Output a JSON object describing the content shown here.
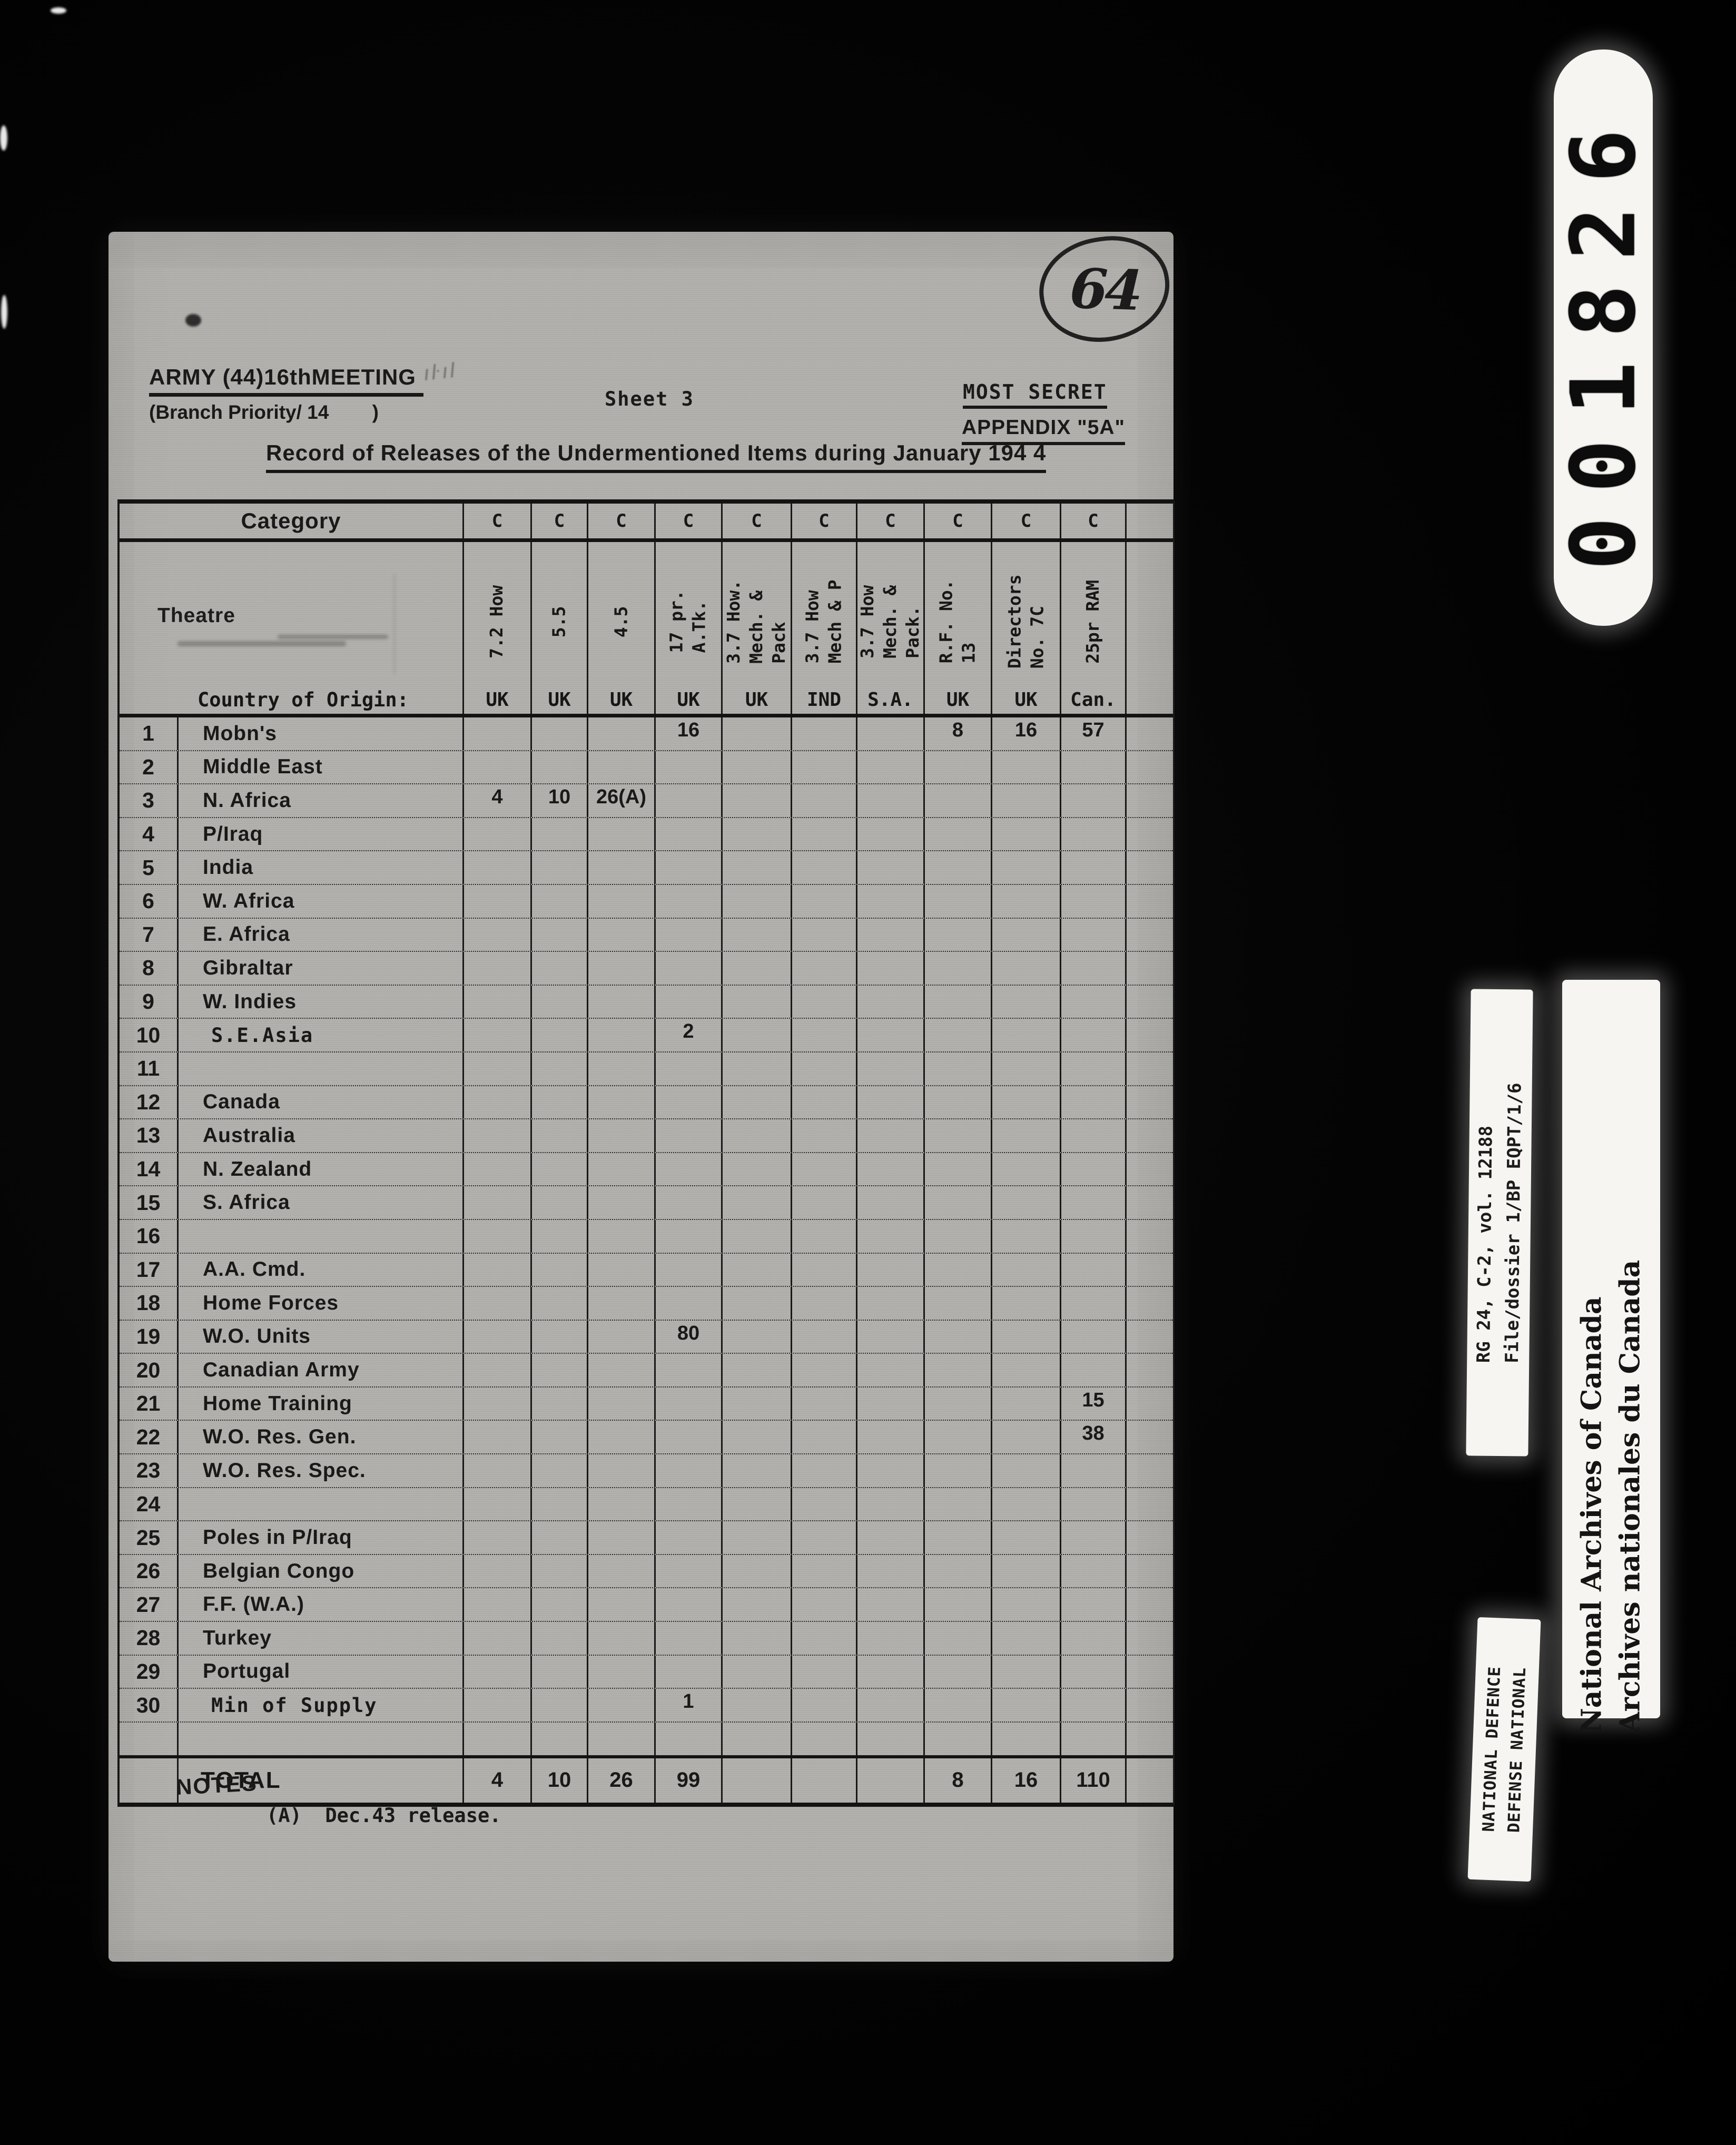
{
  "film": {
    "frame_counter": "001826",
    "rg_label": {
      "line1": "RG 24, C-2, vol. 12188",
      "line2": "File/dossier 1/BP EQPT/1/6"
    },
    "archives_label": {
      "line1": "National Archives of Canada",
      "line2": "Archives nationales du Canada"
    },
    "defence_label": {
      "line1": "NATIONAL DEFENCE",
      "line2": "DEFENSE NATIONAL"
    }
  },
  "document": {
    "handwritten_page_number": "64",
    "header": {
      "meeting": "ARMY (44)16thMEETING",
      "branch_priority": "(Branch Priority/ 14        )",
      "sheet": "Sheet 3",
      "classification": "MOST SECRET",
      "appendix": "APPENDIX \"5A\"",
      "title": "Record of Releases of the Undermentioned Items during January 194 4"
    },
    "table": {
      "corner_label": "Category",
      "category_code": "C",
      "theatre_label": "Theatre",
      "origin_label": "Country of Origin:",
      "columns": [
        {
          "item": "7.2 How",
          "origin": "UK"
        },
        {
          "item": "5.5",
          "origin": "UK"
        },
        {
          "item": "4.5",
          "origin": "UK"
        },
        {
          "item": "17 pr.\nA.Tk.",
          "origin": "UK"
        },
        {
          "item": "3.7 How.\nMech. &\nPack",
          "origin": "UK"
        },
        {
          "item": "3.7 How\nMech & P",
          "origin": "IND"
        },
        {
          "item": "3.7 How\nMech. &\nPack.",
          "origin": "S.A."
        },
        {
          "item": "R.F. No.\n13",
          "origin": "UK"
        },
        {
          "item": "Directors\nNo. 7C",
          "origin": "UK"
        },
        {
          "item": "25pr RAM",
          "origin": "Can."
        }
      ],
      "rows": [
        {
          "num": "1",
          "label": "Mobn's",
          "values": [
            "",
            "",
            "",
            "16",
            "",
            "",
            "",
            "8",
            "16",
            "57"
          ]
        },
        {
          "num": "2",
          "label": "Middle East",
          "values": [
            "",
            "",
            "",
            "",
            "",
            "",
            "",
            "",
            "",
            ""
          ]
        },
        {
          "num": "3",
          "label": "N. Africa",
          "values": [
            "4",
            "10",
            "26(A)",
            "",
            "",
            "",
            "",
            "",
            "",
            ""
          ]
        },
        {
          "num": "4",
          "label": "P/Iraq",
          "values": [
            "",
            "",
            "",
            "",
            "",
            "",
            "",
            "",
            "",
            ""
          ]
        },
        {
          "num": "5",
          "label": "India",
          "values": [
            "",
            "",
            "",
            "",
            "",
            "",
            "",
            "",
            "",
            ""
          ]
        },
        {
          "num": "6",
          "label": "W. Africa",
          "values": [
            "",
            "",
            "",
            "",
            "",
            "",
            "",
            "",
            "",
            ""
          ]
        },
        {
          "num": "7",
          "label": "E. Africa",
          "values": [
            "",
            "",
            "",
            "",
            "",
            "",
            "",
            "",
            "",
            ""
          ]
        },
        {
          "num": "8",
          "label": "Gibraltar",
          "values": [
            "",
            "",
            "",
            "",
            "",
            "",
            "",
            "",
            "",
            ""
          ]
        },
        {
          "num": "9",
          "label": "W. Indies",
          "values": [
            "",
            "",
            "",
            "",
            "",
            "",
            "",
            "",
            "",
            ""
          ]
        },
        {
          "num": "10",
          "label": "S.E.Asia",
          "values": [
            "",
            "",
            "",
            "2",
            "",
            "",
            "",
            "",
            "",
            ""
          ]
        },
        {
          "num": "11",
          "label": "",
          "values": [
            "",
            "",
            "",
            "",
            "",
            "",
            "",
            "",
            "",
            ""
          ]
        },
        {
          "num": "12",
          "label": "Canada",
          "values": [
            "",
            "",
            "",
            "",
            "",
            "",
            "",
            "",
            "",
            ""
          ]
        },
        {
          "num": "13",
          "label": "Australia",
          "values": [
            "",
            "",
            "",
            "",
            "",
            "",
            "",
            "",
            "",
            ""
          ]
        },
        {
          "num": "14",
          "label": "N. Zealand",
          "values": [
            "",
            "",
            "",
            "",
            "",
            "",
            "",
            "",
            "",
            ""
          ]
        },
        {
          "num": "15",
          "label": "S. Africa",
          "values": [
            "",
            "",
            "",
            "",
            "",
            "",
            "",
            "",
            "",
            ""
          ]
        },
        {
          "num": "16",
          "label": "",
          "values": [
            "",
            "",
            "",
            "",
            "",
            "",
            "",
            "",
            "",
            ""
          ]
        },
        {
          "num": "17",
          "label": "A.A. Cmd.",
          "values": [
            "",
            "",
            "",
            "",
            "",
            "",
            "",
            "",
            "",
            ""
          ]
        },
        {
          "num": "18",
          "label": "Home Forces",
          "values": [
            "",
            "",
            "",
            "",
            "",
            "",
            "",
            "",
            "",
            ""
          ]
        },
        {
          "num": "19",
          "label": "W.O. Units",
          "values": [
            "",
            "",
            "",
            "80",
            "",
            "",
            "",
            "",
            "",
            ""
          ]
        },
        {
          "num": "20",
          "label": "Canadian Army",
          "values": [
            "",
            "",
            "",
            "",
            "",
            "",
            "",
            "",
            "",
            ""
          ]
        },
        {
          "num": "21",
          "label": "Home Training",
          "values": [
            "",
            "",
            "",
            "",
            "",
            "",
            "",
            "",
            "",
            "15"
          ]
        },
        {
          "num": "22",
          "label": "W.O. Res. Gen.",
          "values": [
            "",
            "",
            "",
            "",
            "",
            "",
            "",
            "",
            "",
            "38"
          ]
        },
        {
          "num": "23",
          "label": "W.O. Res. Spec.",
          "values": [
            "",
            "",
            "",
            "",
            "",
            "",
            "",
            "",
            "",
            ""
          ]
        },
        {
          "num": "24",
          "label": "",
          "values": [
            "",
            "",
            "",
            "",
            "",
            "",
            "",
            "",
            "",
            ""
          ]
        },
        {
          "num": "25",
          "label": "Poles in P/Iraq",
          "values": [
            "",
            "",
            "",
            "",
            "",
            "",
            "",
            "",
            "",
            ""
          ]
        },
        {
          "num": "26",
          "label": "Belgian Congo",
          "values": [
            "",
            "",
            "",
            "",
            "",
            "",
            "",
            "",
            "",
            ""
          ]
        },
        {
          "num": "27",
          "label": "F.F. (W.A.)",
          "values": [
            "",
            "",
            "",
            "",
            "",
            "",
            "",
            "",
            "",
            ""
          ]
        },
        {
          "num": "28",
          "label": "Turkey",
          "values": [
            "",
            "",
            "",
            "",
            "",
            "",
            "",
            "",
            "",
            ""
          ]
        },
        {
          "num": "29",
          "label": "Portugal",
          "values": [
            "",
            "",
            "",
            "",
            "",
            "",
            "",
            "",
            "",
            ""
          ]
        },
        {
          "num": "30",
          "label": "Min of Supply",
          "values": [
            "",
            "",
            "",
            "1",
            "",
            "",
            "",
            "",
            "",
            ""
          ]
        }
      ],
      "total": {
        "label": "TOTAL",
        "values": [
          "4",
          "10",
          "26",
          "99",
          "",
          "",
          "",
          "8",
          "16",
          "110"
        ]
      }
    },
    "notes": {
      "heading": "NOTES",
      "item": "(A)  Dec.43 release."
    }
  }
}
